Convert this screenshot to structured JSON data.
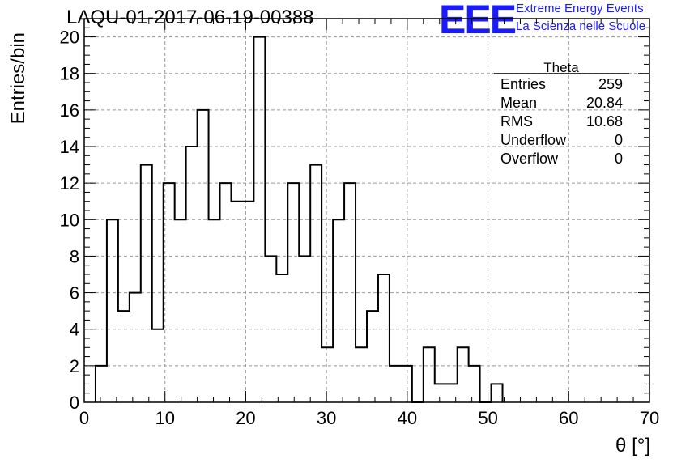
{
  "header": {
    "run_title": "LAQU-01-2017-06-19-00388",
    "logo_text": "EEE",
    "logo_line1": "Extreme Energy Events",
    "logo_line2": "La Scienza nelle Scuole",
    "logo_color": "#1a1aff"
  },
  "stats_box": {
    "title": "Theta",
    "rows": [
      {
        "label": "Entries",
        "value": "259"
      },
      {
        "label": "Mean",
        "value": "20.84"
      },
      {
        "label": "RMS",
        "value": "10.68"
      },
      {
        "label": "Underflow",
        "value": "0"
      },
      {
        "label": "Overflow",
        "value": "0"
      }
    ]
  },
  "chart_data": {
    "type": "bar",
    "histogram": true,
    "xlabel": "θ [°]",
    "ylabel": "Entries/bin",
    "xlim": [
      0,
      70
    ],
    "ylim": [
      0,
      21
    ],
    "bin_width": 1.4,
    "x_ticks": [
      0,
      10,
      20,
      30,
      40,
      50,
      60,
      70
    ],
    "y_ticks": [
      0,
      2,
      4,
      6,
      8,
      10,
      12,
      14,
      16,
      18,
      20
    ],
    "grid": true,
    "line_color": "#000000",
    "bins": [
      {
        "x0": 1.4,
        "count": 2
      },
      {
        "x0": 2.8,
        "count": 10
      },
      {
        "x0": 4.2,
        "count": 5
      },
      {
        "x0": 5.6,
        "count": 6
      },
      {
        "x0": 7.0,
        "count": 13
      },
      {
        "x0": 8.4,
        "count": 4
      },
      {
        "x0": 9.8,
        "count": 12
      },
      {
        "x0": 11.2,
        "count": 10
      },
      {
        "x0": 12.6,
        "count": 14
      },
      {
        "x0": 14.0,
        "count": 16
      },
      {
        "x0": 15.4,
        "count": 10
      },
      {
        "x0": 16.8,
        "count": 12
      },
      {
        "x0": 18.2,
        "count": 11
      },
      {
        "x0": 19.6,
        "count": 11
      },
      {
        "x0": 21.0,
        "count": 20
      },
      {
        "x0": 22.4,
        "count": 8
      },
      {
        "x0": 23.8,
        "count": 7
      },
      {
        "x0": 25.2,
        "count": 12
      },
      {
        "x0": 26.6,
        "count": 8
      },
      {
        "x0": 28.0,
        "count": 13
      },
      {
        "x0": 29.4,
        "count": 3
      },
      {
        "x0": 30.8,
        "count": 10
      },
      {
        "x0": 32.2,
        "count": 12
      },
      {
        "x0": 33.6,
        "count": 3
      },
      {
        "x0": 35.0,
        "count": 5
      },
      {
        "x0": 36.4,
        "count": 7
      },
      {
        "x0": 37.8,
        "count": 2
      },
      {
        "x0": 39.2,
        "count": 2
      },
      {
        "x0": 40.6,
        "count": 0
      },
      {
        "x0": 42.0,
        "count": 3
      },
      {
        "x0": 43.4,
        "count": 1
      },
      {
        "x0": 44.8,
        "count": 1
      },
      {
        "x0": 46.2,
        "count": 3
      },
      {
        "x0": 47.6,
        "count": 2
      },
      {
        "x0": 49.0,
        "count": 0
      },
      {
        "x0": 50.4,
        "count": 1
      }
    ]
  }
}
